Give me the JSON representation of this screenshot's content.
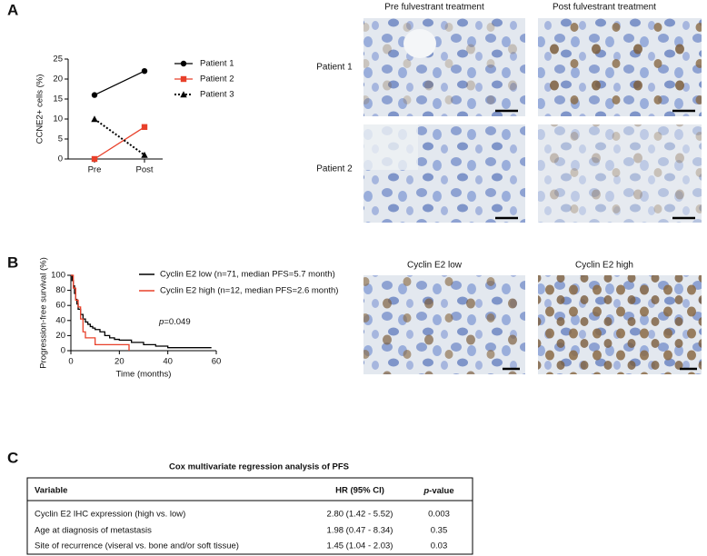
{
  "panel_labels": [
    "A",
    "B",
    "C"
  ],
  "chart_data": [
    {
      "type": "line",
      "ylabel": "CCNE2+ cells (%)",
      "categories": [
        "Pre",
        "Post"
      ],
      "ylim": [
        0,
        25
      ],
      "yticks": [
        0,
        5,
        10,
        15,
        20,
        25
      ],
      "series": [
        {
          "name": "Patient 1",
          "color": "#000000",
          "marker": "circle",
          "dash": false,
          "values": [
            16,
            22
          ]
        },
        {
          "name": "Patient 2",
          "color": "#e8402a",
          "marker": "square",
          "dash": false,
          "values": [
            0,
            8
          ]
        },
        {
          "name": "Patient 3",
          "color": "#000000",
          "marker": "triangle",
          "dash": true,
          "values": [
            10,
            1
          ]
        }
      ]
    },
    {
      "type": "step",
      "xlabel": "Time (months)",
      "ylabel": "Progression-free survival (%)",
      "xlim": [
        0,
        60
      ],
      "xticks": [
        0,
        20,
        40,
        60
      ],
      "ylim": [
        0,
        100
      ],
      "yticks": [
        0,
        20,
        40,
        60,
        80,
        100
      ],
      "annotation": {
        "italic": "p",
        "rest": "=0.049"
      },
      "series": [
        {
          "name": "Cyclin E2 low (n=71, median PFS=5.7 month)",
          "color": "#000000",
          "x": [
            0,
            0.5,
            1,
            1.5,
            2,
            2.5,
            3,
            4,
            5,
            6,
            7,
            8,
            9,
            10,
            12,
            14,
            16,
            18,
            20,
            25,
            30,
            35,
            40,
            58
          ],
          "values": [
            100,
            93,
            86,
            76,
            68,
            62,
            55,
            48,
            42,
            38,
            35,
            32,
            30,
            28,
            25,
            20,
            17,
            15,
            14,
            11,
            8,
            6,
            4,
            4
          ]
        },
        {
          "name": "Cyclin E2 high (n=12, median PFS=2.6 month)",
          "color": "#e8402a",
          "x": [
            0,
            1,
            2,
            3,
            4,
            5,
            6,
            10,
            24
          ],
          "values": [
            100,
            83,
            67,
            58,
            42,
            25,
            17,
            8,
            0
          ]
        }
      ]
    }
  ],
  "micrographs": {
    "a_columns": [
      "Pre fulvestrant treatment",
      "Post fulvestrant treatment"
    ],
    "a_rows": [
      "Patient 1",
      "Patient 2"
    ],
    "b_columns": [
      "Cyclin E2 low",
      "Cyclin E2 high"
    ]
  },
  "table": {
    "title": "Cox multivariate regression analysis of PFS",
    "headers": [
      "Variable",
      "HR (95% CI)",
      {
        "italic": "p",
        "rest": "-value"
      }
    ],
    "rows": [
      [
        "Cyclin E2 IHC expression (high vs. low)",
        "2.80 (1.42 - 5.52)",
        "0.003"
      ],
      [
        "Age at diagnosis of metastasis",
        "1.98 (0.47 - 8.34)",
        "0.35"
      ],
      [
        "Site of recurrence (viseral vs. bone and/or soft tissue)",
        "1.45 (1.04 - 2.03)",
        "0.03"
      ]
    ]
  }
}
